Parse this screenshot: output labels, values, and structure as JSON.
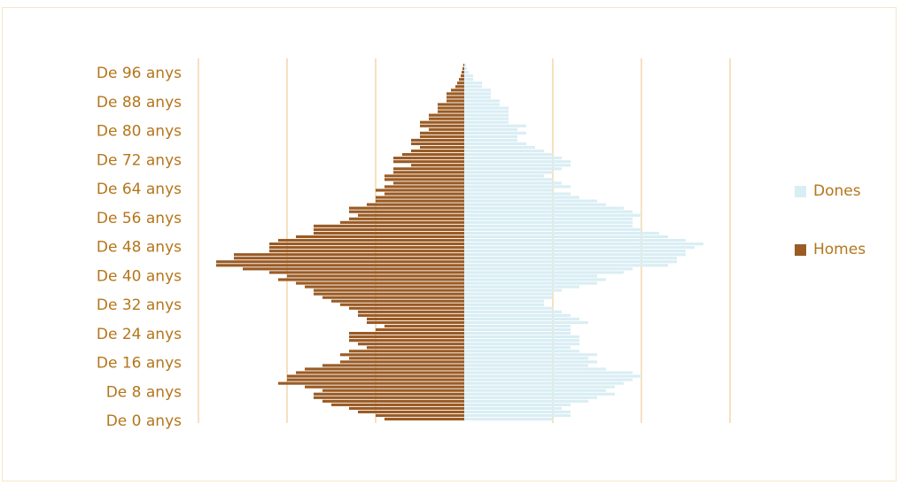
{
  "colors": {
    "women": "#d9eef4",
    "men": "#9a5b25",
    "grid": "#f6e1bf",
    "text": "#b4761b",
    "frame": "#f6e6c8"
  },
  "chart_data": {
    "type": "bar",
    "orientation": "horizontal",
    "chart_kind": "population-pyramid",
    "grid": true,
    "legend_position": "right",
    "ytick_labels": [
      "De 96 anys",
      "De 88 anys",
      "De 80 anys",
      "De 72 anys",
      "De 64 anys",
      "De 56 anys",
      "De 48 anys",
      "De 40 anys",
      "De 32 anys",
      "De 24 anys",
      "De 16 anys",
      "De 8 anys",
      "De 0 anys"
    ],
    "ages": [
      0,
      1,
      2,
      3,
      4,
      5,
      6,
      7,
      8,
      9,
      10,
      11,
      12,
      13,
      14,
      15,
      16,
      17,
      18,
      19,
      20,
      21,
      22,
      23,
      24,
      25,
      26,
      27,
      28,
      29,
      30,
      31,
      32,
      33,
      34,
      35,
      36,
      37,
      38,
      39,
      40,
      41,
      42,
      43,
      44,
      45,
      46,
      47,
      48,
      49,
      50,
      51,
      52,
      53,
      54,
      55,
      56,
      57,
      58,
      59,
      60,
      61,
      62,
      63,
      64,
      65,
      66,
      67,
      68,
      69,
      70,
      71,
      72,
      73,
      74,
      75,
      76,
      77,
      78,
      79,
      80,
      81,
      82,
      83,
      84,
      85,
      86,
      87,
      88,
      89,
      90,
      91,
      92,
      93,
      94,
      95,
      96,
      97,
      98,
      99
    ],
    "series": [
      {
        "name": "Dones",
        "values": [
          1.0,
          1.2,
          1.2,
          1.1,
          1.2,
          1.4,
          1.5,
          1.7,
          1.6,
          1.7,
          1.8,
          1.9,
          2.0,
          1.9,
          1.6,
          1.4,
          1.5,
          1.4,
          1.5,
          1.3,
          1.2,
          1.3,
          1.3,
          1.3,
          1.2,
          1.2,
          1.2,
          1.4,
          1.3,
          1.2,
          1.1,
          1.0,
          0.9,
          0.9,
          1.0,
          1.0,
          1.1,
          1.3,
          1.5,
          1.6,
          1.5,
          1.8,
          1.9,
          2.3,
          2.4,
          2.4,
          2.5,
          2.5,
          2.6,
          2.7,
          2.5,
          2.3,
          2.2,
          2.0,
          1.9,
          1.9,
          1.9,
          2.0,
          1.9,
          1.8,
          1.6,
          1.5,
          1.3,
          1.2,
          1.0,
          1.2,
          1.1,
          1.0,
          0.9,
          1.0,
          1.1,
          1.2,
          1.2,
          1.1,
          1.0,
          0.9,
          0.8,
          0.7,
          0.6,
          0.6,
          0.7,
          0.6,
          0.7,
          0.5,
          0.5,
          0.5,
          0.5,
          0.5,
          0.4,
          0.4,
          0.3,
          0.3,
          0.3,
          0.2,
          0.2,
          0.1,
          0.1,
          0.05,
          0.03,
          0.02
        ]
      },
      {
        "name": "Homes",
        "values": [
          0.9,
          1.0,
          1.2,
          1.3,
          1.5,
          1.6,
          1.7,
          1.7,
          1.6,
          1.8,
          2.1,
          2.0,
          2.0,
          1.9,
          1.8,
          1.6,
          1.4,
          1.3,
          1.4,
          1.3,
          1.1,
          1.2,
          1.3,
          1.3,
          1.3,
          1.0,
          0.9,
          1.1,
          1.1,
          1.2,
          1.2,
          1.3,
          1.4,
          1.5,
          1.6,
          1.7,
          1.7,
          1.8,
          1.9,
          2.1,
          2.0,
          2.2,
          2.5,
          2.8,
          2.8,
          2.6,
          2.6,
          2.2,
          2.2,
          2.2,
          2.1,
          1.9,
          1.7,
          1.7,
          1.7,
          1.4,
          1.3,
          1.2,
          1.3,
          1.3,
          1.1,
          1.0,
          1.0,
          0.9,
          1.0,
          0.9,
          0.8,
          0.9,
          0.9,
          0.8,
          0.8,
          0.6,
          0.8,
          0.8,
          0.7,
          0.6,
          0.5,
          0.6,
          0.6,
          0.5,
          0.5,
          0.4,
          0.5,
          0.5,
          0.4,
          0.4,
          0.3,
          0.3,
          0.3,
          0.2,
          0.2,
          0.2,
          0.15,
          0.1,
          0.08,
          0.06,
          0.04,
          0.03,
          0.02,
          0.01
        ]
      }
    ],
    "xlim": [
      -3,
      3
    ]
  }
}
